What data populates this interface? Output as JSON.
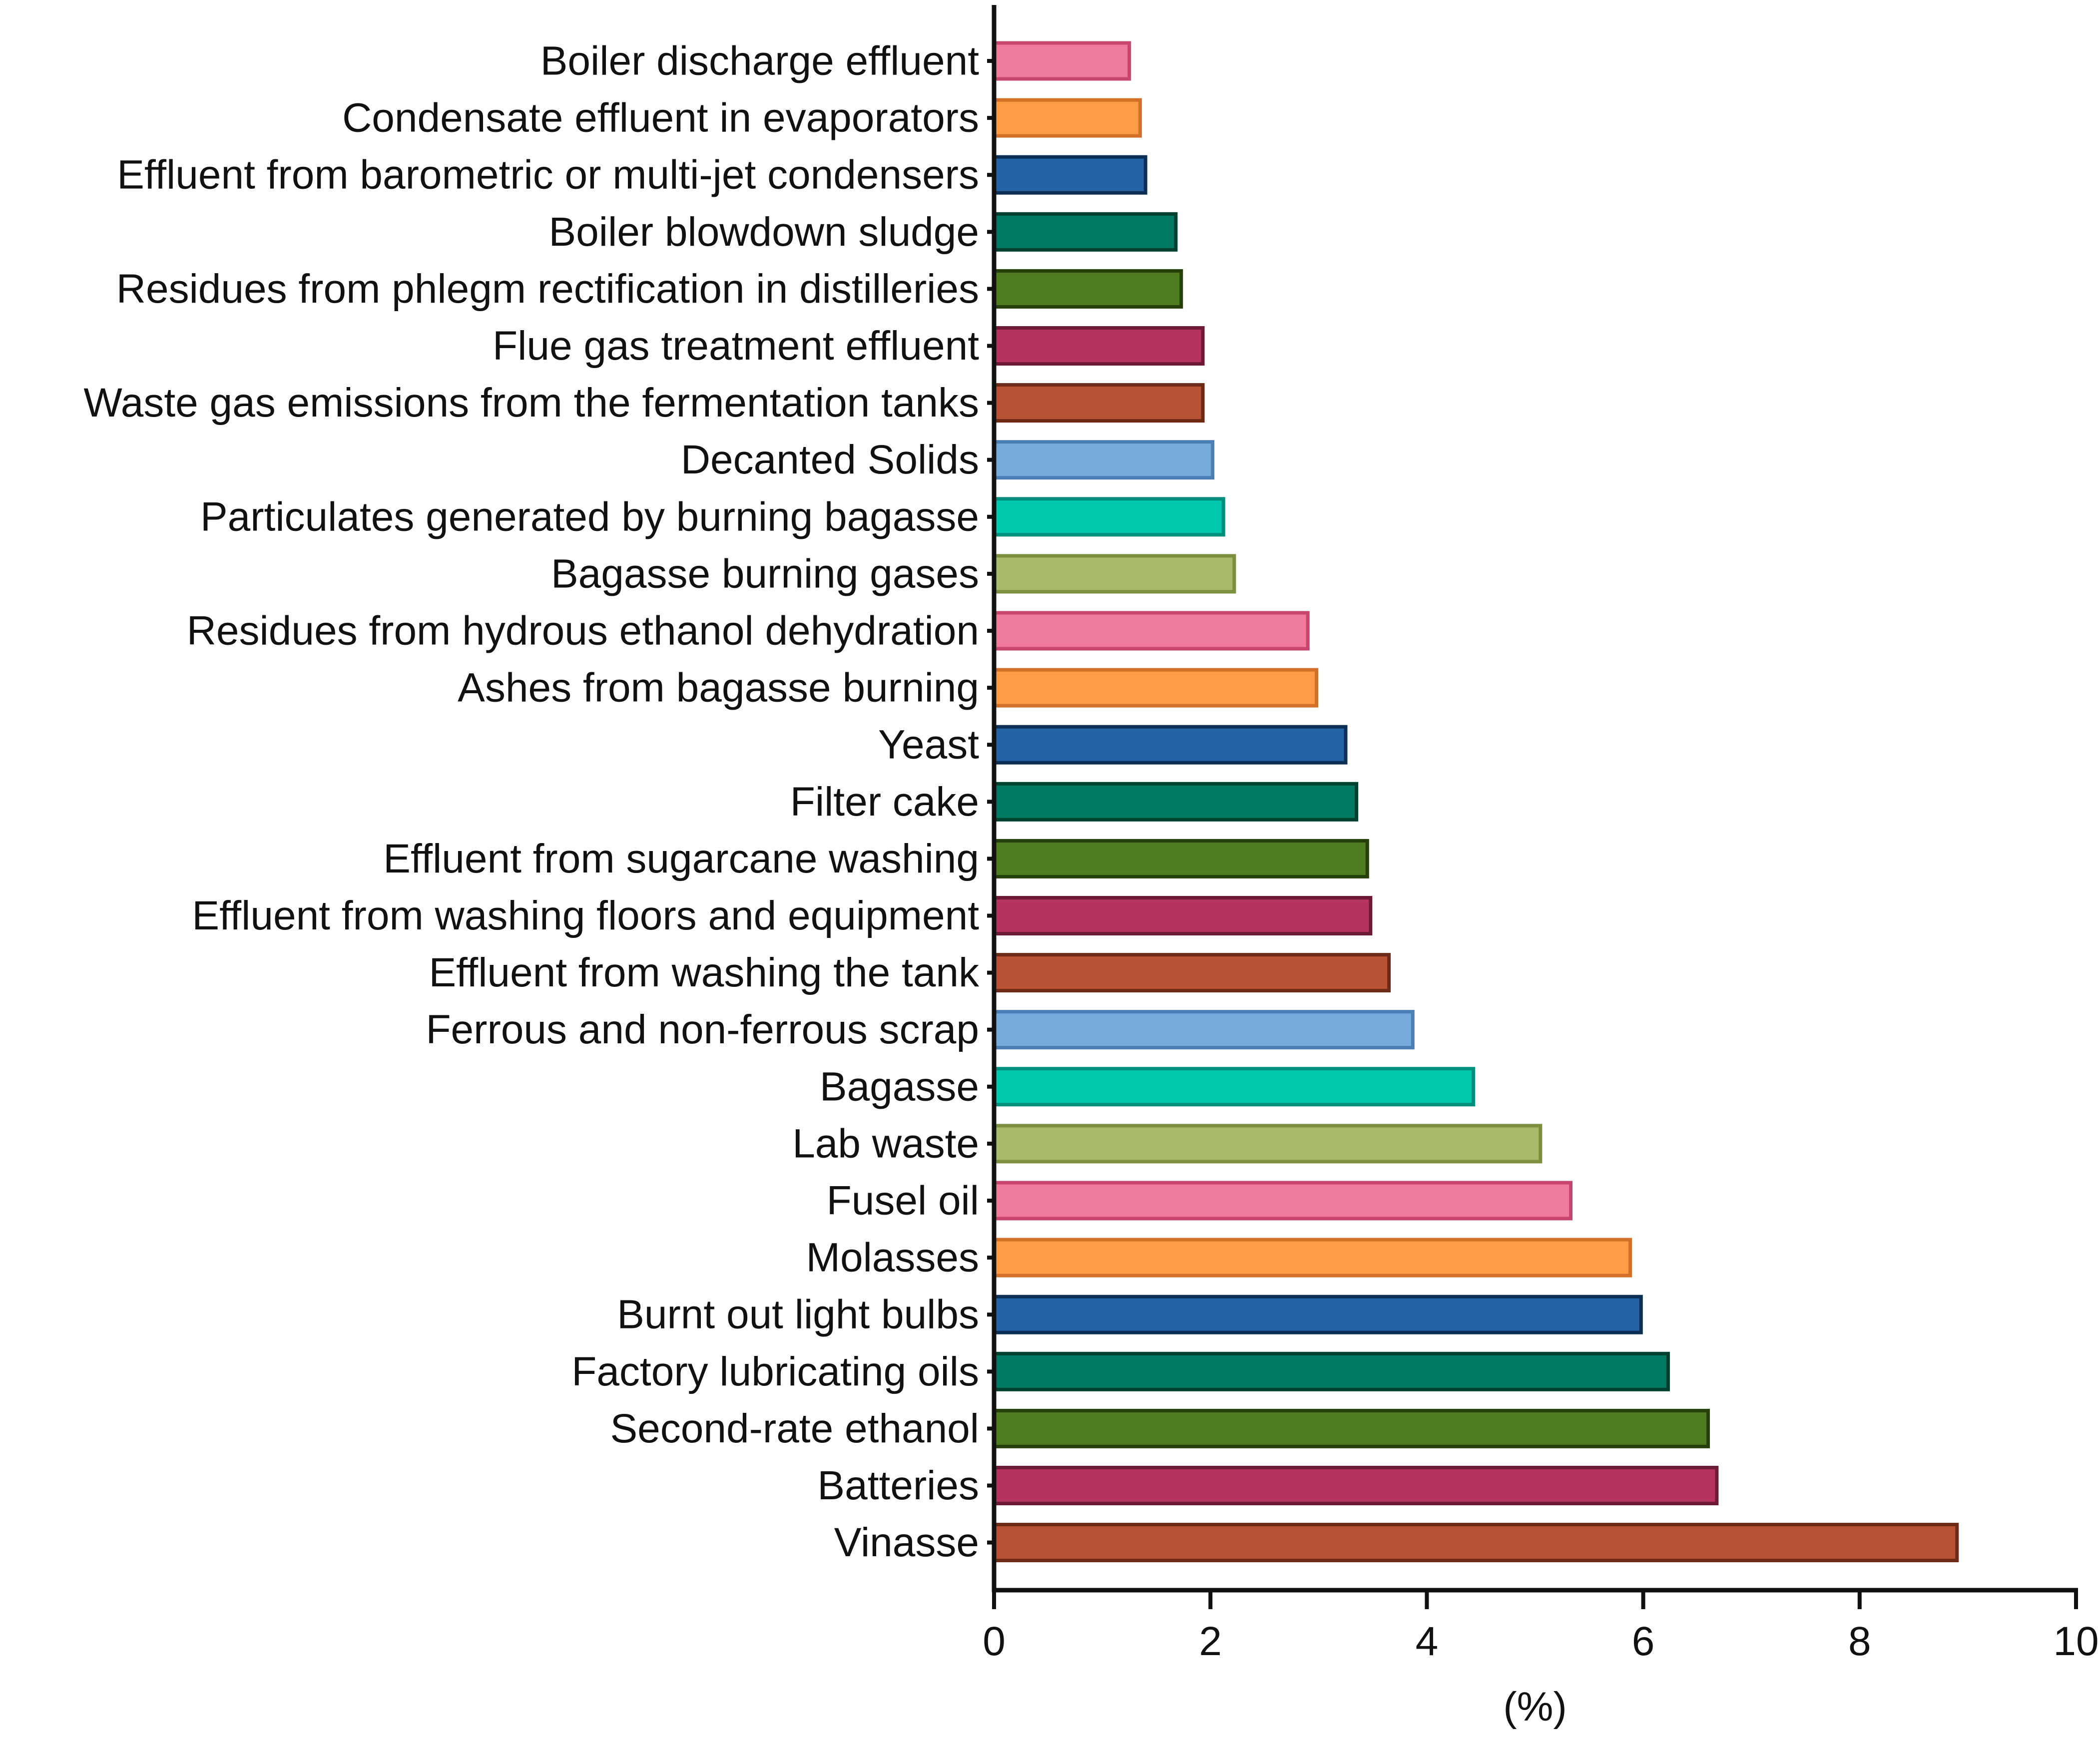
{
  "chart_data": {
    "type": "bar",
    "orientation": "horizontal",
    "title": "",
    "xlabel": "(%)",
    "ylabel": "",
    "xlim": [
      0,
      10
    ],
    "xticks": [
      0,
      2,
      4,
      6,
      8,
      10
    ],
    "grid": false,
    "legend": "none",
    "categories": [
      "Boiler discharge effluent",
      "Condensate effluent in evaporators",
      "Effluent from barometric or multi-jet condensers",
      "Boiler blowdown sludge",
      "Residues from phlegm rectification in distilleries",
      "Flue gas treatment effluent",
      "Waste gas emissions from the fermentation tanks",
      "Decanted Solids",
      "Particulates generated by burning bagasse",
      "Bagasse burning gases",
      "Residues from hydrous ethanol dehydration",
      "Ashes from bagasse burning",
      "Yeast",
      "Filter cake",
      "Effluent from sugarcane washing",
      "Effluent from washing floors and equipment",
      "Effluent from washing the tank",
      "Ferrous and non-ferrous scrap",
      "Bagasse",
      "Lab waste",
      "Fusel oil",
      "Molasses",
      "Burnt out light bulbs",
      "Factory lubricating oils",
      "Second-rate ethanol",
      "Batteries",
      "Vinasse"
    ],
    "values": [
      1.25,
      1.35,
      1.4,
      1.68,
      1.73,
      1.93,
      1.93,
      2.02,
      2.12,
      2.22,
      2.9,
      2.98,
      3.25,
      3.35,
      3.45,
      3.48,
      3.65,
      3.87,
      4.43,
      5.05,
      5.33,
      5.88,
      5.98,
      6.23,
      6.6,
      6.68,
      8.9
    ],
    "colors": [
      "#F07A9C",
      "#FF9A45",
      "#2464A4",
      "#007A63",
      "#4E7C1E",
      "#B43360",
      "#B85234",
      "#77A9DC",
      "#00C9AE",
      "#A9BB6A",
      "#F07A9C",
      "#FF9A45",
      "#2464A4",
      "#007A63",
      "#4E7C1E",
      "#B43360",
      "#B85234",
      "#77A9DC",
      "#00C9AE",
      "#A9BB6A",
      "#F07A9C",
      "#FF9A45",
      "#2464A4",
      "#007A63",
      "#4E7C1E",
      "#B43360",
      "#B85234"
    ],
    "border_colors": [
      "#C8466E",
      "#D2702A",
      "#0E2F55",
      "#00402F",
      "#26400B",
      "#6E1A37",
      "#6D2A16",
      "#4A7EB4",
      "#008F7A",
      "#7C8F3E",
      "#C8466E",
      "#D2702A",
      "#0E2F55",
      "#00402F",
      "#26400B",
      "#6E1A37",
      "#6D2A16",
      "#4A7EB4",
      "#008F7A",
      "#7C8F3E",
      "#C8466E",
      "#D2702A",
      "#0E2F55",
      "#00402F",
      "#26400B",
      "#6E1A37",
      "#6D2A16"
    ]
  }
}
